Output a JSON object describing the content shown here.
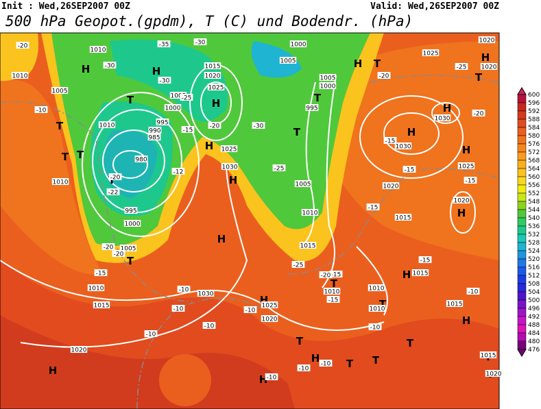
{
  "header": {
    "init": "Init : Wed,26SEP2007 00Z",
    "valid": "Valid: Wed,26SEP2007 00Z",
    "title": "500 hPa Geopot.(gpdm), T (C) und Bodendr. (hPa)"
  },
  "legend": {
    "levels": [
      600,
      596,
      592,
      588,
      584,
      580,
      576,
      572,
      568,
      564,
      560,
      556,
      552,
      548,
      544,
      540,
      536,
      532,
      528,
      524,
      520,
      516,
      512,
      508,
      504,
      500,
      496,
      492,
      488,
      484,
      480,
      476
    ],
    "colors": [
      "#c8285a",
      "#b4143c",
      "#c8281e",
      "#d23c1e",
      "#e14b1e",
      "#eb5f1e",
      "#f0731e",
      "#f5871e",
      "#fa9b1e",
      "#faaf1e",
      "#fac31e",
      "#fad71e",
      "#f0eb14",
      "#c8e614",
      "#8cd21e",
      "#50c83c",
      "#32c864",
      "#1ec88c",
      "#1ec8b4",
      "#1eb4d2",
      "#1e96dc",
      "#1e78e6",
      "#1e5ae6",
      "#1e3ce6",
      "#2828dc",
      "#5014c8",
      "#7814c8",
      "#a014c8",
      "#c814c8",
      "#dc14b4",
      "#b40ab4",
      "#780078"
    ]
  },
  "map_labels": {
    "highs_lows": [
      "H",
      "H",
      "H",
      "H",
      "H",
      "H",
      "H",
      "H",
      "H",
      "H",
      "H",
      "H",
      "H",
      "H",
      "H",
      "H",
      "H",
      "H",
      "T",
      "T",
      "T",
      "T",
      "T",
      "T",
      "T",
      "T",
      "T",
      "T",
      "T",
      "T",
      "T",
      "T",
      "T",
      "T",
      "T",
      "T"
    ],
    "pressure": [
      "1010",
      "1000",
      "1005",
      "1015",
      "1020",
      "1025",
      "1005",
      "1000",
      "995",
      "990",
      "985",
      "980",
      "995",
      "1000",
      "1005",
      "1010",
      "1015",
      "1020",
      "1030",
      "1025",
      "1020",
      "1030",
      "1025",
      "1005",
      "1000",
      "995",
      "1005",
      "1010",
      "1015",
      "1010",
      "1005",
      "1010",
      "1010",
      "1025",
      "1020",
      "1020",
      "1030",
      "1030",
      "1025",
      "1020",
      "1020",
      "1015",
      "1015",
      "1010",
      "1010",
      "1010",
      "1015",
      "1015",
      "1020"
    ],
    "temperature": [
      "-20",
      "-35",
      "-30",
      "-30",
      "-30",
      "-25",
      "-20",
      "-15",
      "-30",
      "-25",
      "-12",
      "-20",
      "-22",
      "-20",
      "-20",
      "-15",
      "-10",
      "-10",
      "-10",
      "-10",
      "-10",
      "-15",
      "-20",
      "-25",
      "-20",
      "-25",
      "-20",
      "-15",
      "-15",
      "-15",
      "-15",
      "-15",
      "-15",
      "-10",
      "-10",
      "-10",
      "-10",
      "-10",
      "-10"
    ]
  }
}
